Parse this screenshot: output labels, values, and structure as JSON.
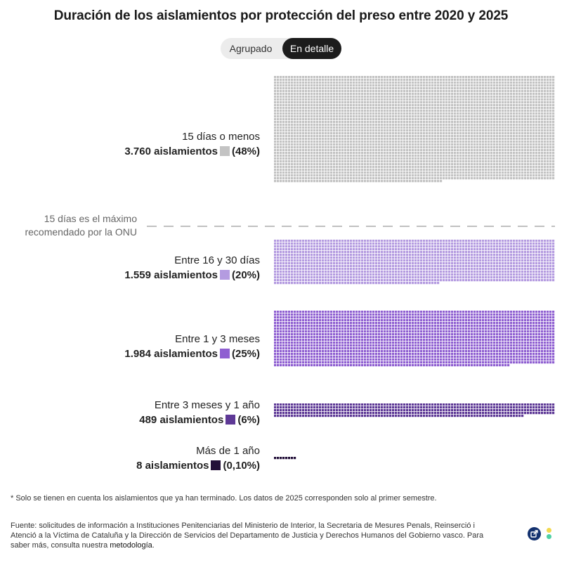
{
  "title": "Duración de los aislamientos por protección del preso entre 2020 y 2025",
  "toggle": {
    "grouped_label": "Agrupado",
    "detail_label": "En detalle",
    "selected": "En detalle"
  },
  "threshold": {
    "line1": "15 días es el máximo",
    "line2": "recomendado por la ONU"
  },
  "chart_data": {
    "type": "waffle",
    "unit": "aislamientos",
    "categories": [
      {
        "label": "15 días o menos",
        "value": 3760,
        "count_text": "3.760 aislamientos",
        "pct_text": "(48%)",
        "color": "#c3c3c3"
      },
      {
        "label": "Entre 16 y 30 días",
        "value": 1559,
        "count_text": "1.559 aislamientos",
        "pct_text": "(20%)",
        "color": "#b49be0"
      },
      {
        "label": "Entre 1 y 3 meses",
        "value": 1984,
        "count_text": "1.984 aislamientos",
        "pct_text": "(25%)",
        "color": "#8f5fd1"
      },
      {
        "label": "Entre 3 meses y 1 año",
        "value": 489,
        "count_text": "489 aislamientos",
        "pct_text": "(6%)",
        "color": "#5e3996"
      },
      {
        "label": "Más de 1 año",
        "value": 8,
        "count_text": "8 aislamientos",
        "pct_text": "(0,10%)",
        "color": "#220f38"
      }
    ]
  },
  "footnote": "* Solo se tienen en cuenta los aislamientos que ya han terminado. Los datos de 2025 corresponden solo al primer semestre.",
  "source": {
    "text": "Fuente: solicitudes de información a Instituciones Penitenciarias del Ministerio de Interior, la Secretaria de Mesures Penals, Reinserció i Atenció a la Víctima de Cataluña y la Dirección de Servicios del Departamento de Justicia y Derechos Humanos del Gobierno vasco. Para saber más, consulta nuestra",
    "link": "metodología",
    "end": "."
  },
  "icons": {
    "share": "share-external-icon",
    "brand": "brand-dots-icon",
    "brand_colors": [
      "#f2d94e",
      "#4fd1a5"
    ]
  }
}
